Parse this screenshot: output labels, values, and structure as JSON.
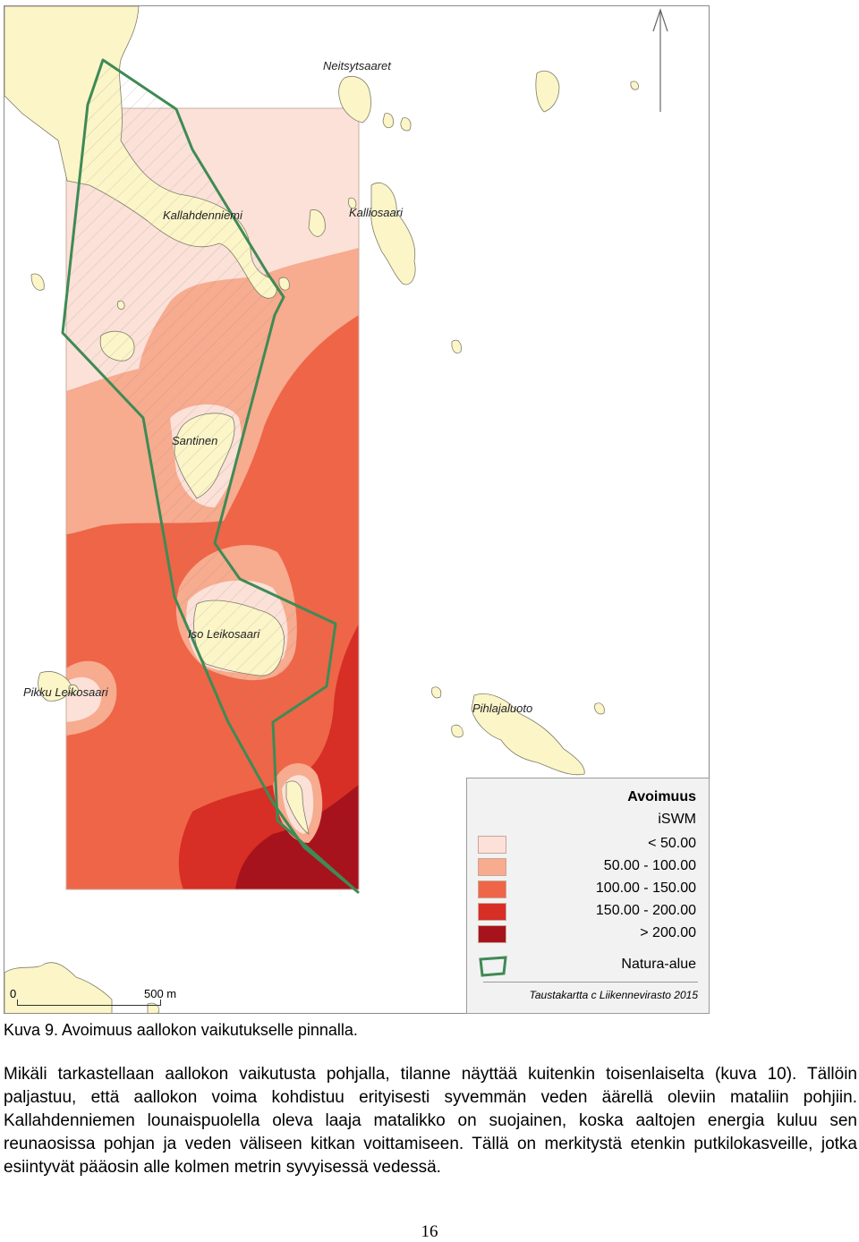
{
  "map": {
    "place_names": [
      "Neitsytsaaret",
      "Kallahdenniemi",
      "Kalliosaari",
      "Santinen",
      "Iso Leikosaari",
      "Pikku Leikosaari",
      "Pihlajaluoto"
    ],
    "colors": {
      "water": "#ffffff",
      "land": "#fbf5c8",
      "land_edge": "#7d7d6a",
      "natura_outline": "#3f8a55"
    },
    "north_arrow_icon": "north-arrow-icon"
  },
  "legend": {
    "title": "Avoimuus",
    "subtitle": "iSWM",
    "classes": [
      {
        "label": "< 50.00",
        "color": "#fbe1d8"
      },
      {
        "label": "50.00 - 100.00",
        "color": "#f7ab8f"
      },
      {
        "label": "100.00 - 150.00",
        "color": "#ef6547"
      },
      {
        "label": "150.00 - 200.00",
        "color": "#d72e26"
      },
      {
        "label": "> 200.00",
        "color": "#a7131c"
      }
    ],
    "natura_label": "Natura-alue",
    "credit": "Taustakartta c Liikennevirasto 2015"
  },
  "scale_bar": {
    "start_label": "0",
    "end_label": "500 m"
  },
  "caption": "Kuva 9. Avoimuus aallokon vaikutukselle pinnalla.",
  "paragraph": "Mikäli tarkastellaan aallokon vaikutusta pohjalla, tilanne näyttää kuitenkin toisenlaiselta (kuva 10). Tällöin paljastuu, että aallokon voima kohdistuu erityisesti syvemmän veden äärellä oleviin mataliin pohjiin. Kallahdenniemen lounaispuolella oleva laaja matalikko on suojainen, koska aaltojen energia kuluu sen reunaosissa pohjan ja veden väliseen kitkan voittamiseen. Tällä on merkitystä etenkin putkilokasveille, jotka esiintyvät pääosin alle kolmen metrin syvyisessä vedessä.",
  "page_number": "16"
}
